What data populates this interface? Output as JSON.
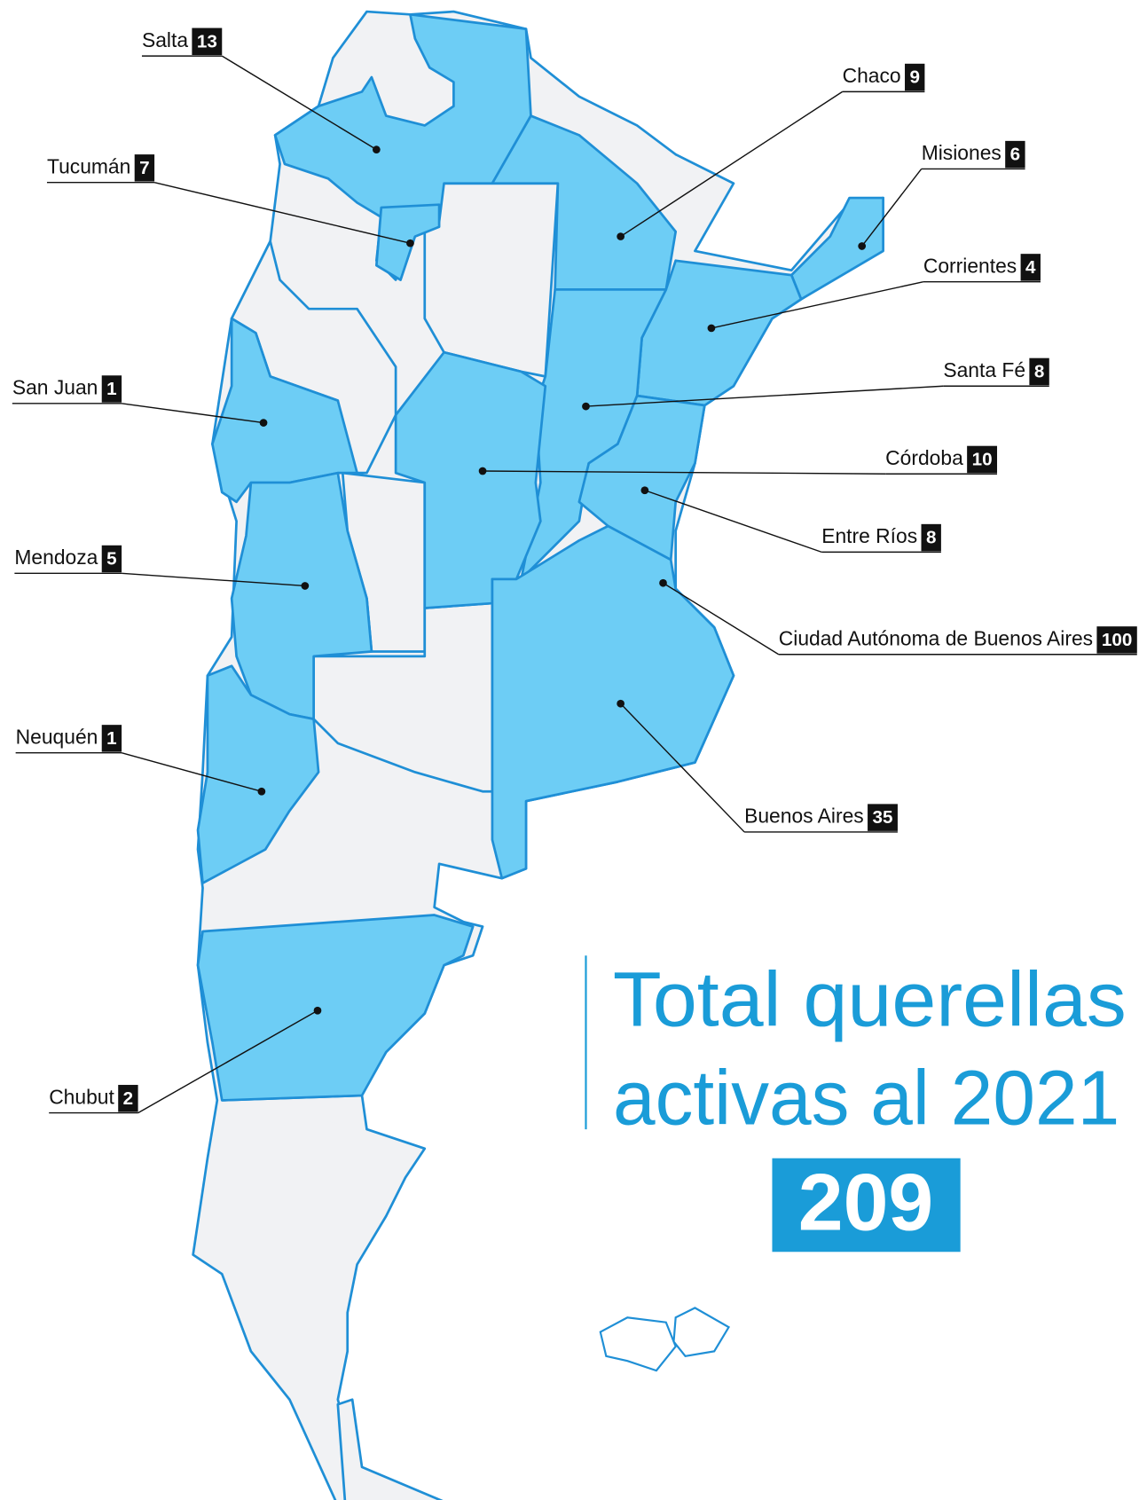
{
  "title": [
    "Total querellas",
    "activas al 2021"
  ],
  "total": 209,
  "provinces": [
    {
      "name": "Salta",
      "value": 13
    },
    {
      "name": "Chaco",
      "value": 9
    },
    {
      "name": "Tucumán",
      "value": 7
    },
    {
      "name": "Misiones",
      "value": 6
    },
    {
      "name": "Corrientes",
      "value": 4
    },
    {
      "name": "Santa Fé",
      "value": 8
    },
    {
      "name": "San Juan",
      "value": 1
    },
    {
      "name": "Córdoba",
      "value": 10
    },
    {
      "name": "Entre Ríos",
      "value": 8
    },
    {
      "name": "Mendoza",
      "value": 5
    },
    {
      "name": "Ciudad Autónoma de Buenos Aires",
      "value": 100
    },
    {
      "name": "Neuquén",
      "value": 1
    },
    {
      "name": "Buenos Aires",
      "value": 35
    },
    {
      "name": "Chubut",
      "value": 2
    }
  ]
}
